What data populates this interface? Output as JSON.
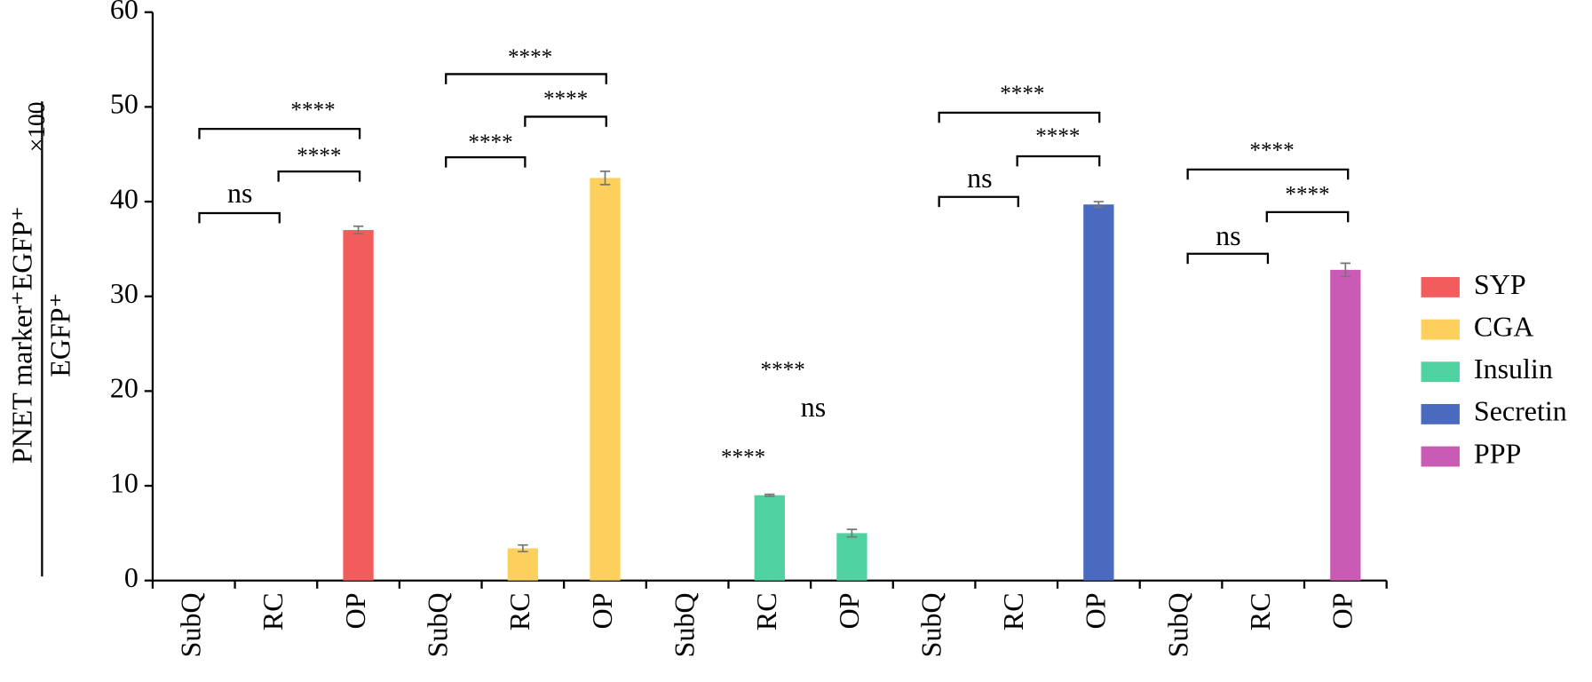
{
  "chart_data": {
    "type": "bar",
    "y_label": {
      "numerator": "PNET marker⁺EGFP⁺",
      "denominator": "EGFP⁺",
      "multiplier": "×100"
    },
    "categories": [
      "SubQ",
      "RC",
      "OP",
      "SubQ",
      "RC",
      "OP",
      "SubQ",
      "RC",
      "OP",
      "SubQ",
      "RC",
      "OP",
      "SubQ",
      "RC",
      "OP"
    ],
    "series": [
      {
        "name": "SYP",
        "color": "#f25c5c",
        "values": [
          0,
          0,
          37,
          null,
          null,
          null,
          null,
          null,
          null,
          null,
          null,
          null,
          null,
          null,
          null
        ],
        "errors": [
          null,
          null,
          0.4,
          null,
          null,
          null,
          null,
          null,
          null,
          null,
          null,
          null,
          null,
          null,
          null
        ]
      },
      {
        "name": "CGA",
        "color": "#fdd05e",
        "values": [
          null,
          null,
          null,
          0,
          3.4,
          42.5,
          null,
          null,
          null,
          null,
          null,
          null,
          null,
          null,
          null
        ],
        "errors": [
          null,
          null,
          null,
          null,
          0.35,
          0.7,
          null,
          null,
          null,
          null,
          null,
          null,
          null,
          null,
          null
        ]
      },
      {
        "name": "Insulin",
        "color": "#4fd1a0",
        "values": [
          null,
          null,
          null,
          null,
          null,
          null,
          0,
          9,
          5,
          null,
          null,
          null,
          null,
          null,
          null
        ],
        "errors": [
          null,
          null,
          null,
          null,
          null,
          null,
          null,
          0.1,
          0.4,
          null,
          null,
          null,
          null,
          null,
          null
        ]
      },
      {
        "name": "Secretin",
        "color": "#4a6abf",
        "values": [
          null,
          null,
          null,
          null,
          null,
          null,
          null,
          null,
          null,
          0,
          0,
          39.7,
          null,
          null,
          null
        ],
        "errors": [
          null,
          null,
          null,
          null,
          null,
          null,
          null,
          null,
          null,
          null,
          null,
          0.3,
          null,
          null,
          null
        ]
      },
      {
        "name": "PPP",
        "color": "#c95bb5",
        "values": [
          null,
          null,
          null,
          null,
          null,
          null,
          null,
          null,
          null,
          null,
          null,
          null,
          0,
          0,
          32.8
        ],
        "errors": [
          null,
          null,
          null,
          null,
          null,
          null,
          null,
          null,
          null,
          null,
          null,
          null,
          null,
          null,
          0.7
        ]
      }
    ],
    "ylim": [
      0,
      60
    ],
    "yticks": [
      0,
      10,
      20,
      30,
      40,
      50,
      60
    ],
    "annotations": [
      "****",
      "****",
      "ns",
      "****",
      "****",
      "****",
      "****",
      "ns",
      "****",
      "****",
      "****",
      "ns",
      "****",
      "****",
      "ns"
    ]
  }
}
